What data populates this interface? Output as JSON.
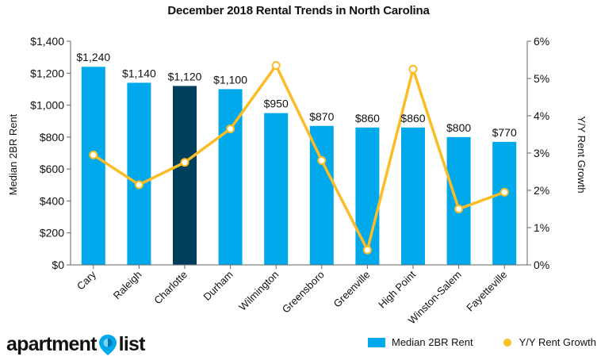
{
  "chart_data": {
    "type": "bar",
    "title": "December 2018 Rental Trends in North Carolina",
    "categories": [
      "Cary",
      "Raleigh",
      "Charlotte",
      "Durham",
      "Wilmington",
      "Greensboro",
      "Greenville",
      "High Point",
      "Winston-Salem",
      "Fayetteville"
    ],
    "highlight_category": "Charlotte",
    "series": [
      {
        "name": "Median 2BR Rent",
        "kind": "bar",
        "axis": "left",
        "values": [
          1240,
          1140,
          1120,
          1100,
          950,
          870,
          860,
          860,
          800,
          770
        ],
        "data_labels": [
          "$1,240",
          "$1,140",
          "$1,120",
          "$1,100",
          "$950",
          "$870",
          "$860",
          "$860",
          "$800",
          "$770"
        ]
      },
      {
        "name": "Y/Y Rent Growth",
        "kind": "line",
        "axis": "right",
        "values": [
          2.95,
          2.15,
          2.75,
          3.65,
          5.35,
          2.8,
          0.4,
          5.25,
          1.5,
          1.95
        ]
      }
    ],
    "ylabel": "Median 2BR Rent",
    "ylim": [
      0,
      1400
    ],
    "y_ticks": [
      "$0",
      "$200",
      "$400",
      "$600",
      "$800",
      "$1,000",
      "$1,200",
      "$1,400"
    ],
    "y2label": "Y/Y Rent Growth",
    "y2lim": [
      0,
      6
    ],
    "y2_ticks": [
      "0%",
      "1%",
      "2%",
      "3%",
      "4%",
      "5%",
      "6%"
    ],
    "grid": false,
    "legend_position": "bottom-right"
  },
  "colors": {
    "bar": "#00a9ec",
    "bar_highlight": "#003f5c",
    "line": "#fbbd26",
    "marker_fill": "#ffffff",
    "axis": "#666666"
  },
  "legend": {
    "bar_label": "Median 2BR Rent",
    "line_label": "Y/Y Rent Growth"
  },
  "logo": {
    "left_text": "apartment",
    "right_text": "list",
    "icon": "location-pin-icon"
  }
}
